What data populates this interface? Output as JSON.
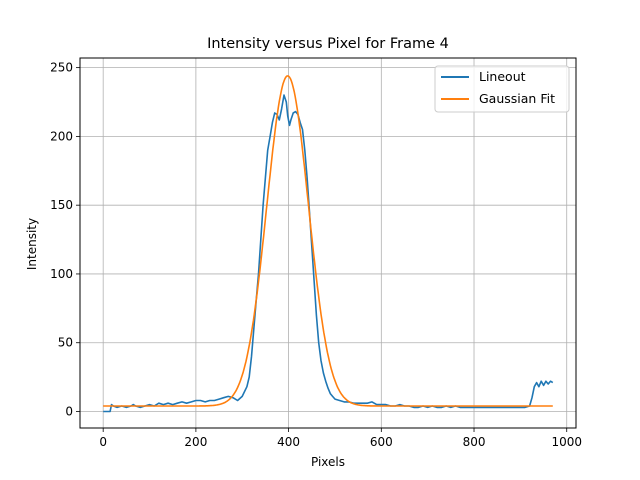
{
  "chart_data": {
    "type": "line",
    "title": "Intensity versus Pixel for Frame 4",
    "xlabel": "Pixels",
    "ylabel": "Intensity",
    "xlim": [
      -50,
      1020
    ],
    "ylim": [
      -12,
      257
    ],
    "xticks": [
      0,
      200,
      400,
      600,
      800,
      1000
    ],
    "yticks": [
      0,
      50,
      100,
      150,
      200,
      250
    ],
    "grid": true,
    "legend_position": "top-right",
    "series": [
      {
        "name": "Lineout",
        "color": "#1f77b4",
        "x": [
          0,
          15,
          18,
          22,
          30,
          40,
          50,
          60,
          65,
          70,
          80,
          90,
          100,
          110,
          120,
          130,
          140,
          150,
          160,
          170,
          180,
          190,
          200,
          210,
          220,
          230,
          240,
          250,
          260,
          270,
          280,
          290,
          300,
          310,
          315,
          320,
          325,
          330,
          335,
          340,
          345,
          350,
          355,
          360,
          365,
          370,
          375,
          380,
          385,
          390,
          395,
          398,
          402,
          405,
          410,
          415,
          420,
          425,
          430,
          435,
          440,
          445,
          450,
          455,
          460,
          465,
          470,
          475,
          480,
          485,
          490,
          495,
          500,
          510,
          520,
          530,
          540,
          550,
          560,
          570,
          580,
          590,
          600,
          610,
          620,
          630,
          640,
          650,
          660,
          670,
          680,
          690,
          700,
          710,
          720,
          730,
          740,
          750,
          760,
          770,
          780,
          790,
          800,
          810,
          820,
          830,
          840,
          850,
          860,
          870,
          880,
          890,
          900,
          910,
          920,
          925,
          930,
          935,
          940,
          945,
          950,
          955,
          960,
          965,
          970
        ],
        "y": [
          0,
          0,
          5,
          4,
          3,
          4,
          3,
          4,
          5,
          4,
          3,
          4,
          5,
          4,
          6,
          5,
          6,
          5,
          6,
          7,
          6,
          7,
          8,
          8,
          7,
          8,
          8,
          9,
          10,
          11,
          10,
          8,
          11,
          18,
          25,
          40,
          60,
          80,
          100,
          125,
          150,
          170,
          190,
          200,
          210,
          217,
          216,
          212,
          220,
          230,
          225,
          215,
          208,
          212,
          217,
          218,
          216,
          210,
          205,
          190,
          170,
          145,
          120,
          95,
          70,
          50,
          37,
          28,
          22,
          17,
          13,
          11,
          9,
          8,
          7,
          7,
          6,
          6,
          6,
          6,
          7,
          5,
          5,
          5,
          4,
          4,
          5,
          4,
          4,
          3,
          3,
          4,
          3,
          4,
          3,
          3,
          4,
          3,
          4,
          3,
          3,
          3,
          3,
          3,
          3,
          3,
          3,
          3,
          3,
          3,
          3,
          3,
          3,
          3,
          4,
          10,
          18,
          21,
          18,
          22,
          19,
          22,
          20,
          22,
          21
        ]
      },
      {
        "name": "Gaussian Fit",
        "color": "#ff7f0e",
        "model": {
          "amplitude": 240,
          "center": 398,
          "sigma": 45,
          "offset": 4,
          "x_range": [
            0,
            970
          ]
        }
      }
    ]
  }
}
